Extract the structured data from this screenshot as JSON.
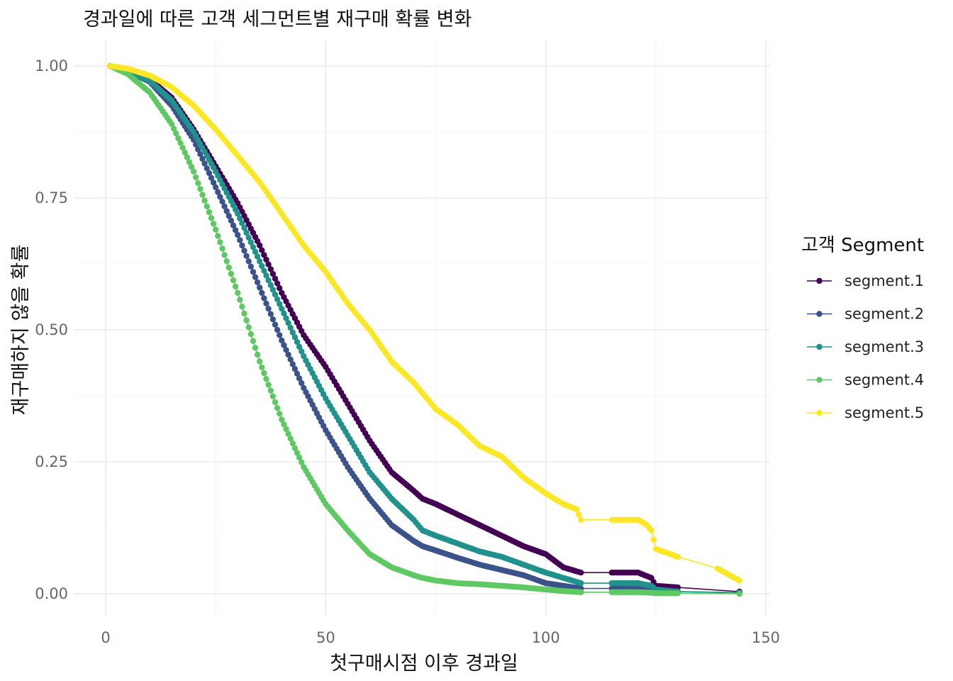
{
  "chart_data": {
    "type": "line",
    "title": "경과일에 따른 고객 세그먼트별 재구매 확률 변화",
    "xlabel": "첫구매시점 이후 경과일",
    "ylabel": "재구매하지 않을 확률",
    "xlim": [
      0,
      150
    ],
    "ylim": [
      0,
      1
    ],
    "x_ticks": [
      "0",
      "50",
      "100",
      "150"
    ],
    "y_ticks": [
      "0.00",
      "0.25",
      "0.50",
      "0.75",
      "1.00"
    ],
    "x_tick_values": [
      0,
      50,
      100,
      150
    ],
    "y_tick_values": [
      0,
      0.25,
      0.5,
      0.75,
      1.0
    ],
    "grid": true,
    "legend": {
      "title": "고객 Segment",
      "position": "right"
    },
    "series": [
      {
        "name": "segment.1",
        "color": "#440154",
        "x": [
          1,
          5,
          10,
          15,
          20,
          25,
          30,
          35,
          40,
          45,
          50,
          55,
          60,
          65,
          70,
          72,
          75,
          80,
          85,
          90,
          95,
          100,
          104,
          108,
          115,
          121,
          124,
          125,
          130,
          144
        ],
        "y": [
          1.0,
          0.99,
          0.975,
          0.94,
          0.88,
          0.81,
          0.74,
          0.66,
          0.57,
          0.49,
          0.43,
          0.36,
          0.29,
          0.23,
          0.195,
          0.18,
          0.17,
          0.15,
          0.13,
          0.11,
          0.09,
          0.075,
          0.05,
          0.04,
          0.04,
          0.04,
          0.03,
          0.015,
          0.012,
          0.004
        ]
      },
      {
        "name": "segment.2",
        "color": "#3b528b",
        "x": [
          1,
          5,
          10,
          15,
          20,
          25,
          30,
          35,
          40,
          45,
          50,
          55,
          60,
          65,
          70,
          72,
          75,
          80,
          85,
          90,
          95,
          100,
          104,
          108,
          115,
          121,
          124,
          125,
          130,
          144
        ],
        "y": [
          1.0,
          0.99,
          0.97,
          0.925,
          0.86,
          0.77,
          0.68,
          0.58,
          0.48,
          0.39,
          0.31,
          0.24,
          0.18,
          0.13,
          0.1,
          0.09,
          0.082,
          0.068,
          0.055,
          0.045,
          0.035,
          0.02,
          0.015,
          0.01,
          0.01,
          0.01,
          0.008,
          0.005,
          0.004,
          0.002
        ]
      },
      {
        "name": "segment.3",
        "color": "#21918c",
        "x": [
          1,
          5,
          10,
          15,
          20,
          25,
          30,
          35,
          40,
          45,
          50,
          55,
          60,
          65,
          70,
          72,
          75,
          80,
          85,
          90,
          95,
          100,
          104,
          108,
          115,
          121,
          124,
          125,
          130,
          144
        ],
        "y": [
          1.0,
          0.99,
          0.972,
          0.935,
          0.875,
          0.8,
          0.72,
          0.63,
          0.54,
          0.45,
          0.37,
          0.3,
          0.23,
          0.18,
          0.14,
          0.12,
          0.11,
          0.095,
          0.08,
          0.07,
          0.055,
          0.04,
          0.03,
          0.02,
          0.02,
          0.02,
          0.015,
          0.008,
          0.004,
          0.002
        ]
      },
      {
        "name": "segment.4",
        "color": "#5ec962",
        "x": [
          1,
          5,
          10,
          15,
          20,
          25,
          30,
          35,
          40,
          45,
          50,
          55,
          60,
          65,
          70,
          72,
          75,
          80,
          85,
          90,
          95,
          100,
          104,
          108,
          115,
          121,
          124,
          125,
          130,
          144
        ],
        "y": [
          1.0,
          0.985,
          0.95,
          0.89,
          0.8,
          0.69,
          0.57,
          0.44,
          0.33,
          0.24,
          0.17,
          0.12,
          0.075,
          0.05,
          0.035,
          0.03,
          0.025,
          0.02,
          0.018,
          0.015,
          0.012,
          0.008,
          0.005,
          0.003,
          0.003,
          0.003,
          0.002,
          0.001,
          0.001,
          0.0
        ]
      },
      {
        "name": "segment.5",
        "color": "#fde725",
        "x": [
          1,
          5,
          10,
          15,
          20,
          25,
          30,
          35,
          40,
          45,
          50,
          55,
          60,
          65,
          70,
          75,
          80,
          85,
          90,
          95,
          100,
          104,
          107,
          108,
          115,
          121,
          123,
          124,
          125,
          130,
          139,
          144
        ],
        "y": [
          1.0,
          0.995,
          0.982,
          0.96,
          0.925,
          0.88,
          0.83,
          0.78,
          0.72,
          0.66,
          0.61,
          0.55,
          0.5,
          0.44,
          0.4,
          0.35,
          0.32,
          0.28,
          0.26,
          0.22,
          0.19,
          0.17,
          0.16,
          0.14,
          0.14,
          0.14,
          0.13,
          0.12,
          0.085,
          0.07,
          0.048,
          0.025
        ]
      }
    ]
  }
}
